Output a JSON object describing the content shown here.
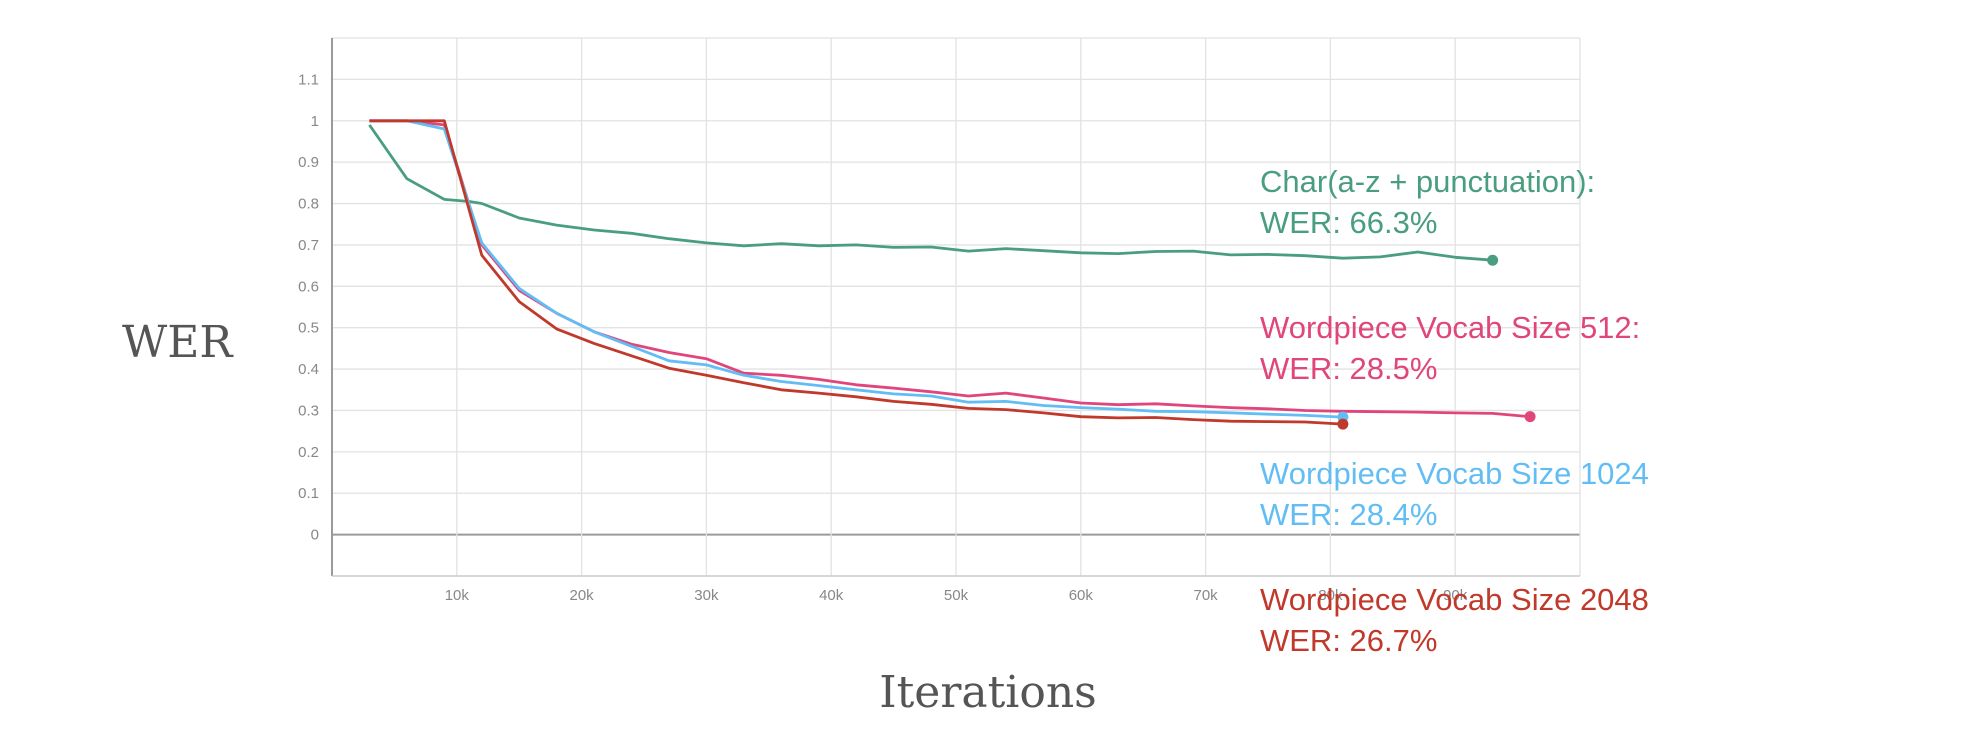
{
  "chart_data": {
    "type": "line",
    "xlabel": "Iterations",
    "ylabel": "WER",
    "xlim": [
      0,
      100000
    ],
    "ylim": [
      -0.1,
      1.2
    ],
    "x_ticks": [
      10000,
      20000,
      30000,
      40000,
      50000,
      60000,
      70000,
      80000,
      90000
    ],
    "x_tick_labels": [
      "10k",
      "20k",
      "30k",
      "40k",
      "50k",
      "60k",
      "70k",
      "80k",
      "90k"
    ],
    "y_ticks": [
      0,
      0.1,
      0.2,
      0.3,
      0.4,
      0.5,
      0.6,
      0.7,
      0.8,
      0.9,
      1,
      1.1
    ],
    "y_tick_labels": [
      "0",
      "0.1",
      "0.2",
      "0.3",
      "0.4",
      "0.5",
      "0.6",
      "0.7",
      "0.8",
      "0.9",
      "1",
      "1.1"
    ],
    "grid": true,
    "series": [
      {
        "color": "#4a9e80",
        "x": [
          3000,
          6000,
          9000,
          11000,
          12000,
          15000,
          18000,
          21000,
          24000,
          27000,
          30000,
          33000,
          36000,
          39000,
          42000,
          45000,
          48000,
          51000,
          54000,
          57000,
          60000,
          63000,
          66000,
          69000,
          72000,
          75000,
          78000,
          81000,
          84000,
          87000,
          90000,
          93000
        ],
        "y": [
          0.99,
          0.86,
          0.81,
          0.805,
          0.8,
          0.765,
          0.748,
          0.736,
          0.728,
          0.715,
          0.705,
          0.698,
          0.703,
          0.698,
          0.7,
          0.694,
          0.695,
          0.685,
          0.691,
          0.686,
          0.681,
          0.679,
          0.684,
          0.685,
          0.676,
          0.677,
          0.674,
          0.668,
          0.671,
          0.683,
          0.67,
          0.663
        ],
        "annotation": [
          "Char(a-z + punctuation):",
          "WER: 66.3%"
        ]
      },
      {
        "color": "#e0457b",
        "x": [
          3000,
          6000,
          9000,
          12000,
          15000,
          18000,
          21000,
          24000,
          27000,
          30000,
          33000,
          36000,
          39000,
          42000,
          45000,
          48000,
          51000,
          54000,
          57000,
          60000,
          63000,
          66000,
          69000,
          72000,
          75000,
          78000,
          81000,
          84000,
          87000,
          90000,
          93000,
          96000
        ],
        "y": [
          1.0,
          1.0,
          0.99,
          0.7,
          0.59,
          0.535,
          0.49,
          0.46,
          0.44,
          0.425,
          0.39,
          0.385,
          0.375,
          0.362,
          0.354,
          0.345,
          0.335,
          0.342,
          0.33,
          0.318,
          0.314,
          0.316,
          0.311,
          0.307,
          0.304,
          0.3,
          0.298,
          0.297,
          0.296,
          0.294,
          0.293,
          0.285
        ],
        "annotation": [
          "Wordpiece Vocab Size 512:",
          "WER: 28.5%"
        ]
      },
      {
        "color": "#62bdf5",
        "x": [
          3000,
          6000,
          9000,
          12000,
          15000,
          18000,
          21000,
          24000,
          27000,
          30000,
          33000,
          36000,
          39000,
          42000,
          45000,
          48000,
          51000,
          54000,
          57000,
          60000,
          63000,
          66000,
          69000,
          72000,
          75000,
          78000,
          81000
        ],
        "y": [
          1.0,
          1.0,
          0.98,
          0.705,
          0.595,
          0.535,
          0.49,
          0.455,
          0.42,
          0.41,
          0.385,
          0.37,
          0.36,
          0.35,
          0.34,
          0.335,
          0.32,
          0.322,
          0.312,
          0.307,
          0.303,
          0.298,
          0.297,
          0.294,
          0.291,
          0.288,
          0.284
        ],
        "annotation": [
          "Wordpiece Vocab Size 1024",
          "WER: 28.4%"
        ]
      },
      {
        "color": "#c0392b",
        "x": [
          3000,
          6000,
          9000,
          12000,
          15000,
          18000,
          21000,
          24000,
          27000,
          30000,
          33000,
          36000,
          39000,
          42000,
          45000,
          48000,
          51000,
          54000,
          57000,
          60000,
          63000,
          66000,
          69000,
          72000,
          75000,
          78000,
          81000
        ],
        "y": [
          1.0,
          1.0,
          1.0,
          0.675,
          0.563,
          0.497,
          0.462,
          0.432,
          0.402,
          0.385,
          0.367,
          0.35,
          0.342,
          0.333,
          0.322,
          0.315,
          0.305,
          0.302,
          0.294,
          0.285,
          0.282,
          0.283,
          0.278,
          0.274,
          0.273,
          0.272,
          0.267
        ],
        "annotation": [
          "Wordpiece Vocab Size 2048",
          "WER: 26.7%"
        ]
      }
    ]
  }
}
